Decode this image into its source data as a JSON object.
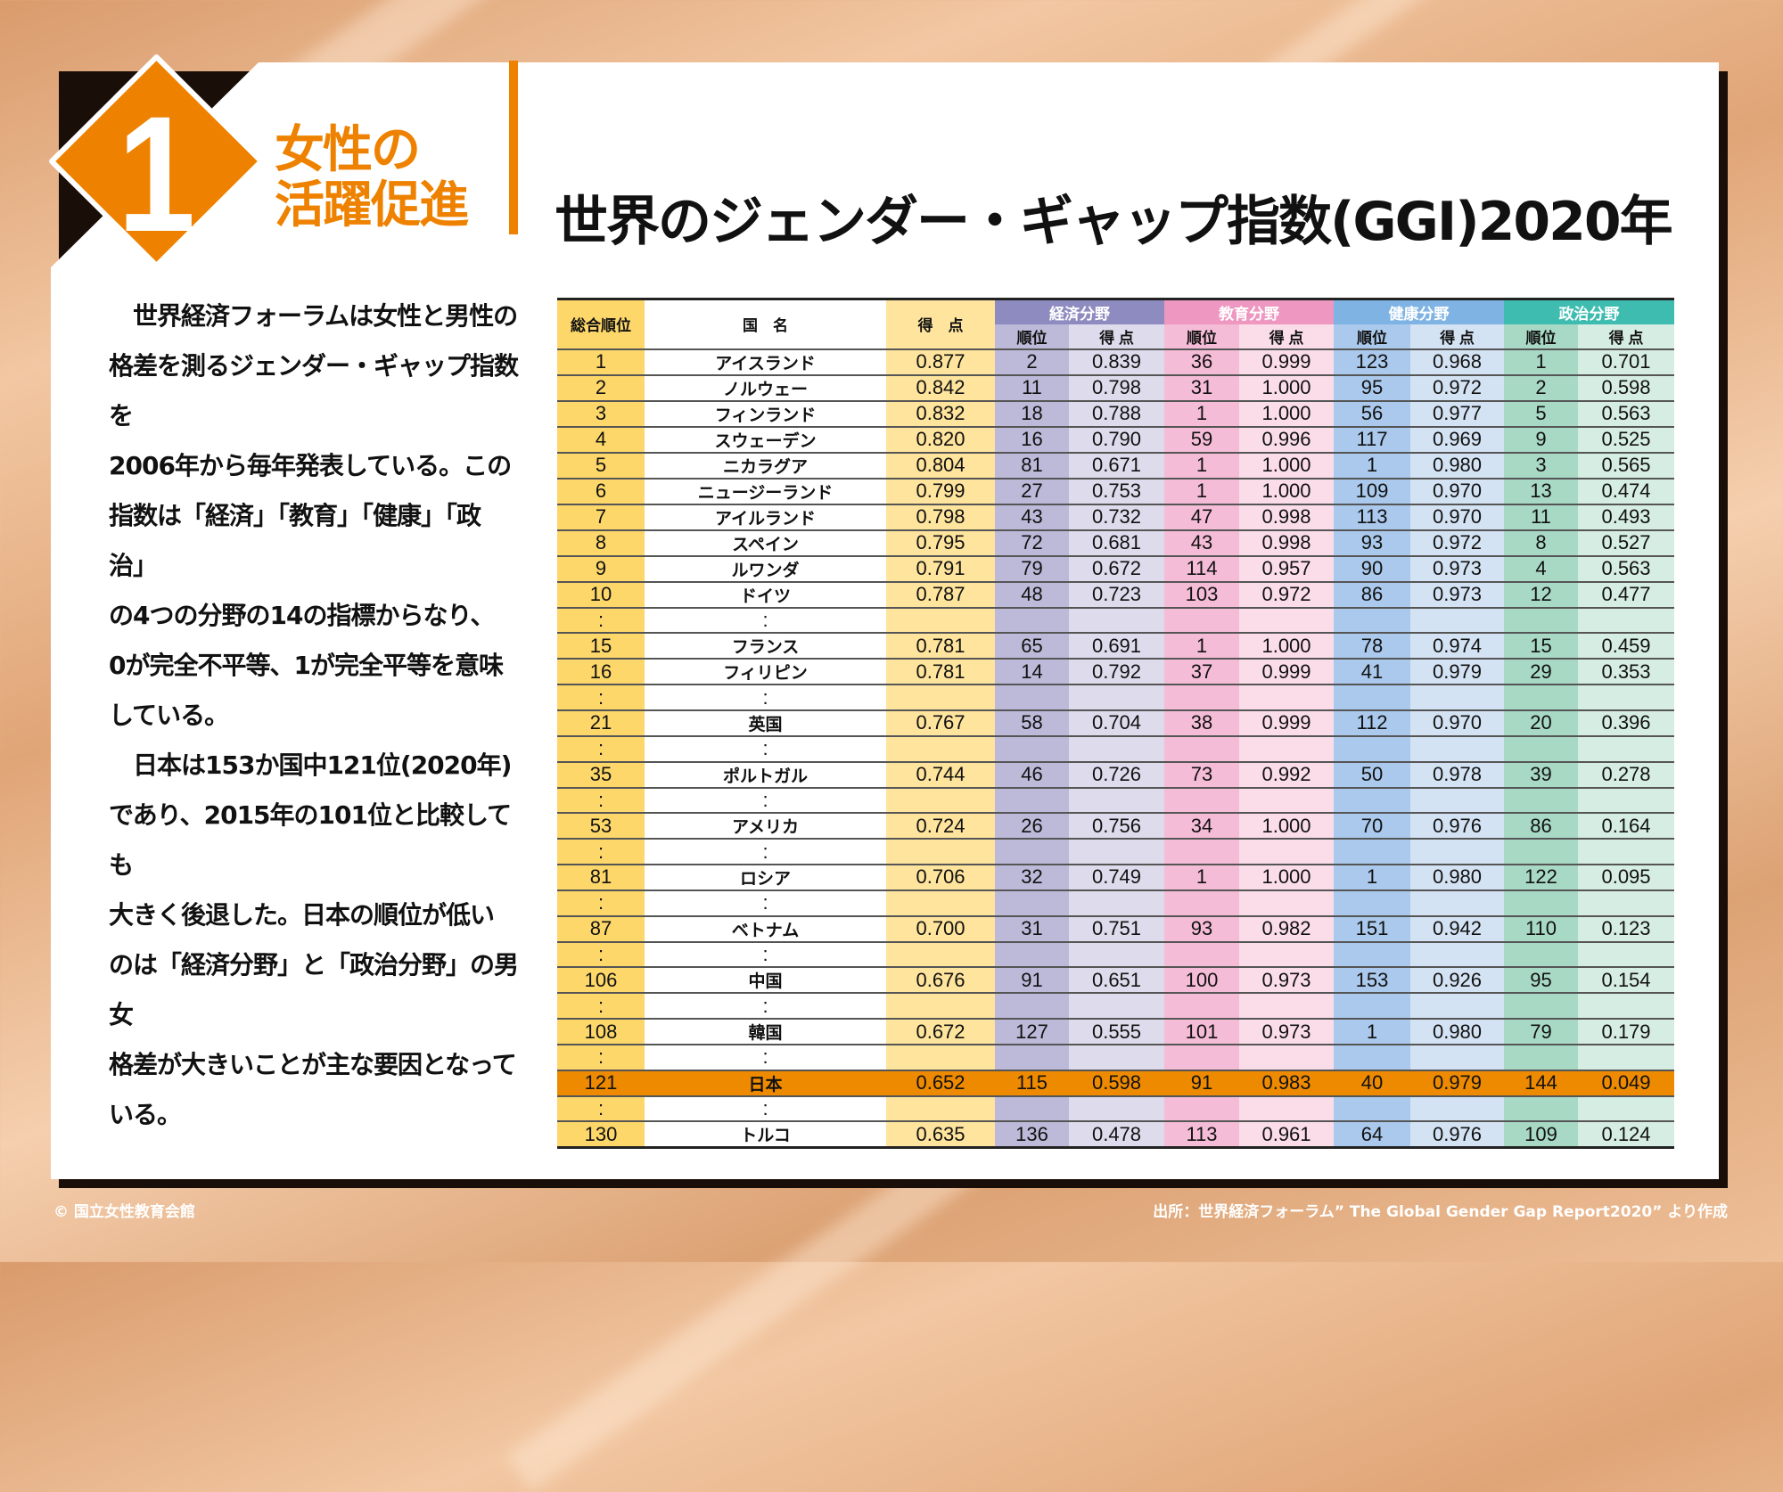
{
  "badge": {
    "number": "1"
  },
  "section": {
    "line1": "女性の",
    "line2": "活躍促進"
  },
  "title": "世界のジェンダー・ギャップ指数(GGI)2020年",
  "paragraph": "　世界経済フォーラムは女性と男性の\n格差を測るジェンダー・ギャップ指数を\n2006年から毎年発表している。この\n指数は「経済」「教育」「健康」「政治」\nの4つの分野の14の指標からなり、\n0が完全不平等、1が完全平等を意味\nしている。\n　日本は153か国中121位(2020年)\nであり、2015年の101位と比較しても\n大きく後退した。日本の順位が低い\nのは「経済分野」と「政治分野」の男女\n格差が大きいことが主な要因となって\nいる。",
  "table": {
    "headers": {
      "overall_rank": "総合順位",
      "country": "国　名",
      "score": "得　点",
      "rank": "順位",
      "sub_score": "得 点"
    },
    "groups": [
      {
        "label": "経済分野",
        "color": "#8e8bc0"
      },
      {
        "label": "教育分野",
        "color": "#ee97c0"
      },
      {
        "label": "健康分野",
        "color": "#7fb3e3"
      },
      {
        "label": "政治分野",
        "color": "#3fbcb0"
      }
    ],
    "ellipsis": ":",
    "highlight_color": "#ee8a00",
    "rows": [
      [
        "1",
        "アイスランド",
        "0.877",
        "2",
        "0.839",
        "36",
        "0.999",
        "123",
        "0.968",
        "1",
        "0.701"
      ],
      [
        "2",
        "ノルウェー",
        "0.842",
        "11",
        "0.798",
        "31",
        "1.000",
        "95",
        "0.972",
        "2",
        "0.598"
      ],
      [
        "3",
        "フィンランド",
        "0.832",
        "18",
        "0.788",
        "1",
        "1.000",
        "56",
        "0.977",
        "5",
        "0.563"
      ],
      [
        "4",
        "スウェーデン",
        "0.820",
        "16",
        "0.790",
        "59",
        "0.996",
        "117",
        "0.969",
        "9",
        "0.525"
      ],
      [
        "5",
        "ニカラグア",
        "0.804",
        "81",
        "0.671",
        "1",
        "1.000",
        "1",
        "0.980",
        "3",
        "0.565"
      ],
      [
        "6",
        "ニュージーランド",
        "0.799",
        "27",
        "0.753",
        "1",
        "1.000",
        "109",
        "0.970",
        "13",
        "0.474"
      ],
      [
        "7",
        "アイルランド",
        "0.798",
        "43",
        "0.732",
        "47",
        "0.998",
        "113",
        "0.970",
        "11",
        "0.493"
      ],
      [
        "8",
        "スペイン",
        "0.795",
        "72",
        "0.681",
        "43",
        "0.998",
        "93",
        "0.972",
        "8",
        "0.527"
      ],
      [
        "9",
        "ルワンダ",
        "0.791",
        "79",
        "0.672",
        "114",
        "0.957",
        "90",
        "0.973",
        "4",
        "0.563"
      ],
      [
        "10",
        "ドイツ",
        "0.787",
        "48",
        "0.723",
        "103",
        "0.972",
        "86",
        "0.973",
        "12",
        "0.477"
      ],
      "gap",
      [
        "15",
        "フランス",
        "0.781",
        "65",
        "0.691",
        "1",
        "1.000",
        "78",
        "0.974",
        "15",
        "0.459"
      ],
      [
        "16",
        "フィリピン",
        "0.781",
        "14",
        "0.792",
        "37",
        "0.999",
        "41",
        "0.979",
        "29",
        "0.353"
      ],
      "gap",
      [
        "21",
        "英国",
        "0.767",
        "58",
        "0.704",
        "38",
        "0.999",
        "112",
        "0.970",
        "20",
        "0.396"
      ],
      "gap",
      [
        "35",
        "ポルトガル",
        "0.744",
        "46",
        "0.726",
        "73",
        "0.992",
        "50",
        "0.978",
        "39",
        "0.278"
      ],
      "gap",
      [
        "53",
        "アメリカ",
        "0.724",
        "26",
        "0.756",
        "34",
        "1.000",
        "70",
        "0.976",
        "86",
        "0.164"
      ],
      "gap",
      [
        "81",
        "ロシア",
        "0.706",
        "32",
        "0.749",
        "1",
        "1.000",
        "1",
        "0.980",
        "122",
        "0.095"
      ],
      "gap",
      [
        "87",
        "ベトナム",
        "0.700",
        "31",
        "0.751",
        "93",
        "0.982",
        "151",
        "0.942",
        "110",
        "0.123"
      ],
      "gap",
      [
        "106",
        "中国",
        "0.676",
        "91",
        "0.651",
        "100",
        "0.973",
        "153",
        "0.926",
        "95",
        "0.154"
      ],
      "gap",
      [
        "108",
        "韓国",
        "0.672",
        "127",
        "0.555",
        "101",
        "0.973",
        "1",
        "0.980",
        "79",
        "0.179"
      ],
      "gap",
      [
        "121",
        "日本",
        "0.652",
        "115",
        "0.598",
        "91",
        "0.983",
        "40",
        "0.979",
        "144",
        "0.049"
      ],
      "gap",
      [
        "130",
        "トルコ",
        "0.635",
        "136",
        "0.478",
        "113",
        "0.961",
        "64",
        "0.976",
        "109",
        "0.124"
      ]
    ],
    "highlight_rank": "121"
  },
  "footer": {
    "copyright": "© 国立女性教育会館",
    "source": "出所：世界経済フォーラム” The Global Gender Gap Report2020” より作成"
  }
}
